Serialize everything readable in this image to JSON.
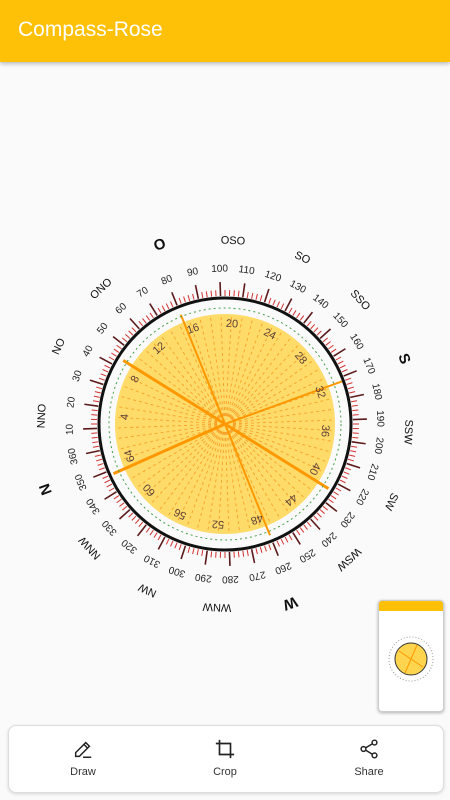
{
  "app": {
    "title": "Compass-Rose"
  },
  "compass": {
    "degree_labels": [
      "10",
      "20",
      "30",
      "40",
      "50",
      "60",
      "70",
      "80",
      "90",
      "100",
      "110",
      "120",
      "130",
      "140",
      "150",
      "160",
      "170",
      "180",
      "190",
      "200",
      "210",
      "220",
      "230",
      "240",
      "250",
      "260",
      "270",
      "280",
      "290",
      "300",
      "310",
      "320",
      "330",
      "340",
      "350",
      "360"
    ],
    "directions": [
      "N",
      "NNO",
      "NO",
      "ONO",
      "O",
      "OSO",
      "SO",
      "SSO",
      "S",
      "SSW",
      "SW",
      "WSW",
      "W",
      "WNW",
      "NW",
      "NNW"
    ],
    "inner_numbers": [
      "4",
      "8",
      "12",
      "16",
      "20",
      "24",
      "28",
      "32",
      "36",
      "40",
      "44",
      "48",
      "52",
      "56",
      "60",
      "64"
    ],
    "colors": {
      "fill": "#FFD54F",
      "ray": "#FF9800",
      "ring": "#111111",
      "tick": "#D32F2F"
    }
  },
  "actions": {
    "draw": "Draw",
    "crop": "Crop",
    "share": "Share"
  },
  "icons": {
    "draw": "pencil-icon",
    "crop": "crop-icon",
    "share": "share-icon"
  }
}
